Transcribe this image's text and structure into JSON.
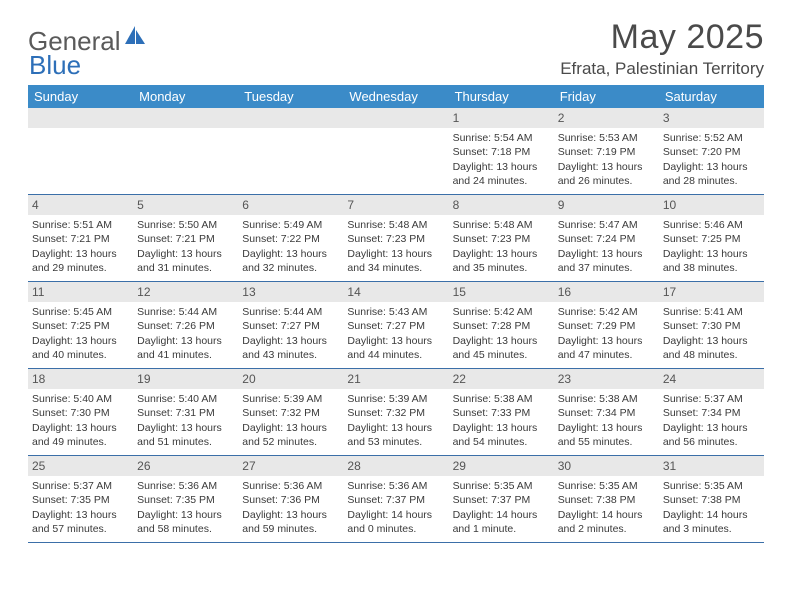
{
  "logo": {
    "text1": "General",
    "text2": "Blue"
  },
  "title": "May 2025",
  "location": "Efrata, Palestinian Territory",
  "day_headers": [
    "Sunday",
    "Monday",
    "Tuesday",
    "Wednesday",
    "Thursday",
    "Friday",
    "Saturday"
  ],
  "colors": {
    "header_bg": "#3b8bc8",
    "row_border": "#3b6fa8",
    "date_bg": "#e8e8e8"
  },
  "weeks": [
    [
      {
        "date": "",
        "lines": []
      },
      {
        "date": "",
        "lines": []
      },
      {
        "date": "",
        "lines": []
      },
      {
        "date": "",
        "lines": []
      },
      {
        "date": "1",
        "lines": [
          "Sunrise: 5:54 AM",
          "Sunset: 7:18 PM",
          "Daylight: 13 hours",
          "and 24 minutes."
        ]
      },
      {
        "date": "2",
        "lines": [
          "Sunrise: 5:53 AM",
          "Sunset: 7:19 PM",
          "Daylight: 13 hours",
          "and 26 minutes."
        ]
      },
      {
        "date": "3",
        "lines": [
          "Sunrise: 5:52 AM",
          "Sunset: 7:20 PM",
          "Daylight: 13 hours",
          "and 28 minutes."
        ]
      }
    ],
    [
      {
        "date": "4",
        "lines": [
          "Sunrise: 5:51 AM",
          "Sunset: 7:21 PM",
          "Daylight: 13 hours",
          "and 29 minutes."
        ]
      },
      {
        "date": "5",
        "lines": [
          "Sunrise: 5:50 AM",
          "Sunset: 7:21 PM",
          "Daylight: 13 hours",
          "and 31 minutes."
        ]
      },
      {
        "date": "6",
        "lines": [
          "Sunrise: 5:49 AM",
          "Sunset: 7:22 PM",
          "Daylight: 13 hours",
          "and 32 minutes."
        ]
      },
      {
        "date": "7",
        "lines": [
          "Sunrise: 5:48 AM",
          "Sunset: 7:23 PM",
          "Daylight: 13 hours",
          "and 34 minutes."
        ]
      },
      {
        "date": "8",
        "lines": [
          "Sunrise: 5:48 AM",
          "Sunset: 7:23 PM",
          "Daylight: 13 hours",
          "and 35 minutes."
        ]
      },
      {
        "date": "9",
        "lines": [
          "Sunrise: 5:47 AM",
          "Sunset: 7:24 PM",
          "Daylight: 13 hours",
          "and 37 minutes."
        ]
      },
      {
        "date": "10",
        "lines": [
          "Sunrise: 5:46 AM",
          "Sunset: 7:25 PM",
          "Daylight: 13 hours",
          "and 38 minutes."
        ]
      }
    ],
    [
      {
        "date": "11",
        "lines": [
          "Sunrise: 5:45 AM",
          "Sunset: 7:25 PM",
          "Daylight: 13 hours",
          "and 40 minutes."
        ]
      },
      {
        "date": "12",
        "lines": [
          "Sunrise: 5:44 AM",
          "Sunset: 7:26 PM",
          "Daylight: 13 hours",
          "and 41 minutes."
        ]
      },
      {
        "date": "13",
        "lines": [
          "Sunrise: 5:44 AM",
          "Sunset: 7:27 PM",
          "Daylight: 13 hours",
          "and 43 minutes."
        ]
      },
      {
        "date": "14",
        "lines": [
          "Sunrise: 5:43 AM",
          "Sunset: 7:27 PM",
          "Daylight: 13 hours",
          "and 44 minutes."
        ]
      },
      {
        "date": "15",
        "lines": [
          "Sunrise: 5:42 AM",
          "Sunset: 7:28 PM",
          "Daylight: 13 hours",
          "and 45 minutes."
        ]
      },
      {
        "date": "16",
        "lines": [
          "Sunrise: 5:42 AM",
          "Sunset: 7:29 PM",
          "Daylight: 13 hours",
          "and 47 minutes."
        ]
      },
      {
        "date": "17",
        "lines": [
          "Sunrise: 5:41 AM",
          "Sunset: 7:30 PM",
          "Daylight: 13 hours",
          "and 48 minutes."
        ]
      }
    ],
    [
      {
        "date": "18",
        "lines": [
          "Sunrise: 5:40 AM",
          "Sunset: 7:30 PM",
          "Daylight: 13 hours",
          "and 49 minutes."
        ]
      },
      {
        "date": "19",
        "lines": [
          "Sunrise: 5:40 AM",
          "Sunset: 7:31 PM",
          "Daylight: 13 hours",
          "and 51 minutes."
        ]
      },
      {
        "date": "20",
        "lines": [
          "Sunrise: 5:39 AM",
          "Sunset: 7:32 PM",
          "Daylight: 13 hours",
          "and 52 minutes."
        ]
      },
      {
        "date": "21",
        "lines": [
          "Sunrise: 5:39 AM",
          "Sunset: 7:32 PM",
          "Daylight: 13 hours",
          "and 53 minutes."
        ]
      },
      {
        "date": "22",
        "lines": [
          "Sunrise: 5:38 AM",
          "Sunset: 7:33 PM",
          "Daylight: 13 hours",
          "and 54 minutes."
        ]
      },
      {
        "date": "23",
        "lines": [
          "Sunrise: 5:38 AM",
          "Sunset: 7:34 PM",
          "Daylight: 13 hours",
          "and 55 minutes."
        ]
      },
      {
        "date": "24",
        "lines": [
          "Sunrise: 5:37 AM",
          "Sunset: 7:34 PM",
          "Daylight: 13 hours",
          "and 56 minutes."
        ]
      }
    ],
    [
      {
        "date": "25",
        "lines": [
          "Sunrise: 5:37 AM",
          "Sunset: 7:35 PM",
          "Daylight: 13 hours",
          "and 57 minutes."
        ]
      },
      {
        "date": "26",
        "lines": [
          "Sunrise: 5:36 AM",
          "Sunset: 7:35 PM",
          "Daylight: 13 hours",
          "and 58 minutes."
        ]
      },
      {
        "date": "27",
        "lines": [
          "Sunrise: 5:36 AM",
          "Sunset: 7:36 PM",
          "Daylight: 13 hours",
          "and 59 minutes."
        ]
      },
      {
        "date": "28",
        "lines": [
          "Sunrise: 5:36 AM",
          "Sunset: 7:37 PM",
          "Daylight: 14 hours",
          "and 0 minutes."
        ]
      },
      {
        "date": "29",
        "lines": [
          "Sunrise: 5:35 AM",
          "Sunset: 7:37 PM",
          "Daylight: 14 hours",
          "and 1 minute."
        ]
      },
      {
        "date": "30",
        "lines": [
          "Sunrise: 5:35 AM",
          "Sunset: 7:38 PM",
          "Daylight: 14 hours",
          "and 2 minutes."
        ]
      },
      {
        "date": "31",
        "lines": [
          "Sunrise: 5:35 AM",
          "Sunset: 7:38 PM",
          "Daylight: 14 hours",
          "and 3 minutes."
        ]
      }
    ]
  ]
}
